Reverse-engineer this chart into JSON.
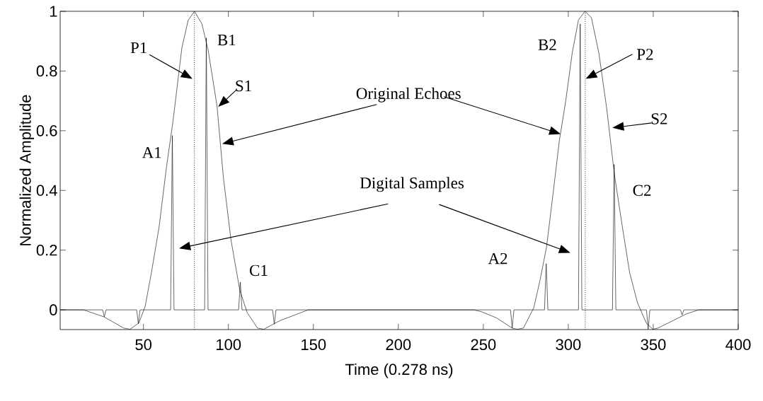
{
  "chart_data": {
    "type": "line",
    "xlabel": "Time (0.278 ns)",
    "ylabel": "Normalized Amplitude",
    "xlim": [
      1,
      400
    ],
    "ylim": [
      -0.066,
      1
    ],
    "xticks": [
      50,
      100,
      150,
      200,
      250,
      300,
      350,
      400
    ],
    "yticks": [
      0,
      0.2,
      0.4,
      0.6,
      0.8,
      1
    ],
    "grid": false,
    "marker": "none",
    "line_style": "solid",
    "series": [
      {
        "color": "#000000",
        "x": [
          1,
          14.7,
          26.6,
          38.4,
          42.1,
          47.3,
          51,
          54.7,
          59.2,
          63.6,
          67.4,
          72.6,
          76.3,
          80,
          84.4,
          88.1,
          93.3,
          97,
          101.5,
          106.7,
          111.1,
          117.1,
          120.8,
          130.4,
          147,
          244.3,
          248.8,
          257.8,
          266.9,
          269.9,
          273.6,
          279.7,
          283.4,
          287.2,
          291,
          294.7,
          298.5,
          302.3,
          306,
          309.8,
          313.6,
          318,
          322.6,
          327.1,
          331.6,
          336.1,
          340.7,
          345.9,
          349.7,
          352.7,
          361.7,
          369.3,
          376.8,
          400
        ],
        "values": [
          0,
          0,
          -0.023,
          -0.061,
          -0.065,
          -0.044,
          0.011,
          0.125,
          0.277,
          0.48,
          0.632,
          0.877,
          0.97,
          1,
          0.958,
          0.869,
          0.683,
          0.446,
          0.235,
          0.066,
          -0.01,
          -0.061,
          -0.065,
          -0.036,
          0,
          0,
          -0.006,
          -0.027,
          -0.061,
          -0.065,
          -0.061,
          0.007,
          0.1,
          0.21,
          0.387,
          0.565,
          0.7,
          0.86,
          0.971,
          1,
          0.979,
          0.86,
          0.675,
          0.455,
          0.286,
          0.125,
          0.024,
          -0.044,
          -0.065,
          -0.061,
          -0.036,
          -0.014,
          0,
          0
        ]
      },
      {
        "color": "#000000",
        "x": [
          1,
          26,
          27,
          28,
          46,
          47,
          48,
          66,
          67,
          68,
          86,
          87,
          88,
          106,
          107,
          108,
          126,
          127,
          128,
          266,
          267,
          268,
          286,
          287,
          288,
          306,
          307,
          308,
          326,
          327,
          328,
          346,
          347,
          348,
          366,
          367,
          368,
          400
        ],
        "values": [
          0,
          0,
          -0.023,
          0,
          0,
          -0.046,
          0,
          0,
          0.584,
          0,
          0,
          0.911,
          0,
          0,
          0.093,
          0,
          0,
          -0.048,
          0,
          0,
          -0.061,
          0,
          0,
          0.155,
          0,
          0,
          0.958,
          0,
          0,
          0.487,
          0,
          0,
          -0.065,
          0,
          0,
          -0.017,
          0,
          0
        ]
      }
    ],
    "ref_lines": [
      {
        "axis": "x",
        "value": 80,
        "line_style": "dotted",
        "color": "#000000"
      },
      {
        "axis": "x",
        "value": 310,
        "line_style": "dotted",
        "color": "#000000"
      }
    ],
    "annotations": [
      "P1",
      "B1",
      {
        "text": "S1",
        "x": 94,
        "y": 0.68
      },
      "A1",
      "C1",
      "Original Echoes",
      "Digital Samples",
      "B2",
      "P2",
      {
        "text": "S2",
        "x": 326,
        "y": 0.61
      },
      "A2",
      "C2"
    ]
  }
}
